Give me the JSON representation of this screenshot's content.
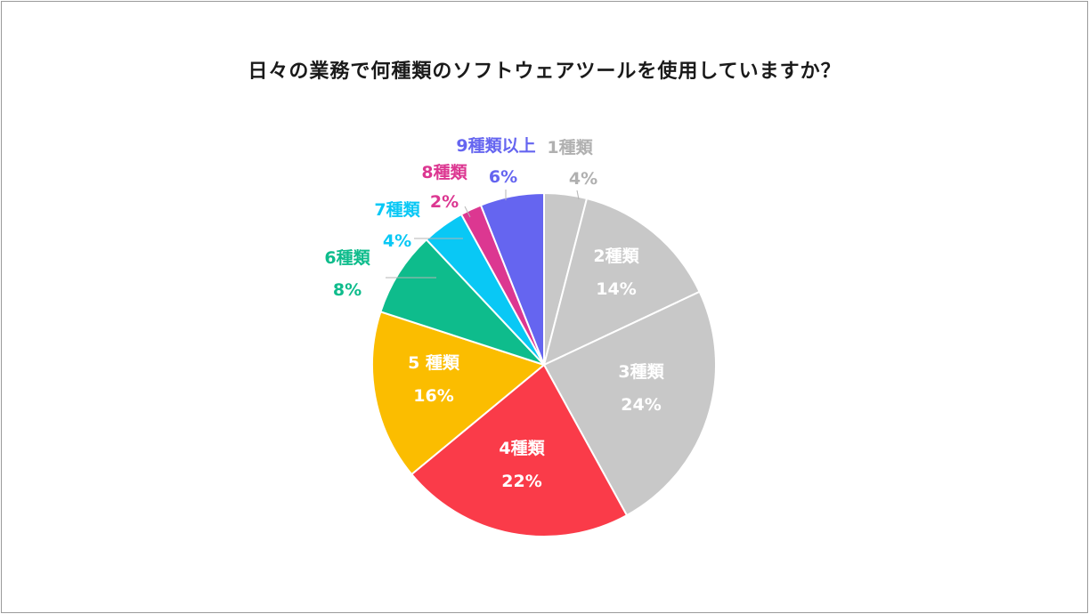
{
  "chart_data": {
    "type": "pie",
    "title": "日々の業務で何種類のソフトウェアツールを使用していますか？",
    "slices": [
      {
        "label": "1種類",
        "value": 4,
        "value_label": "4%",
        "color": "#c8c8c8",
        "text_color": "#b0b0b0",
        "placement": "outside"
      },
      {
        "label": "2種類",
        "value": 14,
        "value_label": "14%",
        "color": "#c8c8c8",
        "text_color": "#ffffff",
        "placement": "inside"
      },
      {
        "label": "3種類",
        "value": 24,
        "value_label": "24%",
        "color": "#c8c8c8",
        "text_color": "#ffffff",
        "placement": "inside"
      },
      {
        "label": "4種類",
        "value": 22,
        "value_label": "22%",
        "color": "#fa3b49",
        "text_color": "#ffffff",
        "placement": "inside"
      },
      {
        "label": "5 種類",
        "value": 16,
        "value_label": "16%",
        "color": "#fbbd00",
        "text_color": "#ffffff",
        "placement": "inside"
      },
      {
        "label": "6種類",
        "value": 8,
        "value_label": "8%",
        "color": "#0ebc8c",
        "text_color": "#0ebc8c",
        "placement": "outside"
      },
      {
        "label": "7種類",
        "value": 4,
        "value_label": "4%",
        "color": "#09c8f5",
        "text_color": "#09c8f5",
        "placement": "outside"
      },
      {
        "label": "8種類",
        "value": 2,
        "value_label": "2%",
        "color": "#dc3791",
        "text_color": "#dc3791",
        "placement": "outside"
      },
      {
        "label": "9種類以上",
        "value": 6,
        "value_label": "6%",
        "color": "#6565f0",
        "text_color": "#6565f0",
        "placement": "outside"
      }
    ]
  }
}
